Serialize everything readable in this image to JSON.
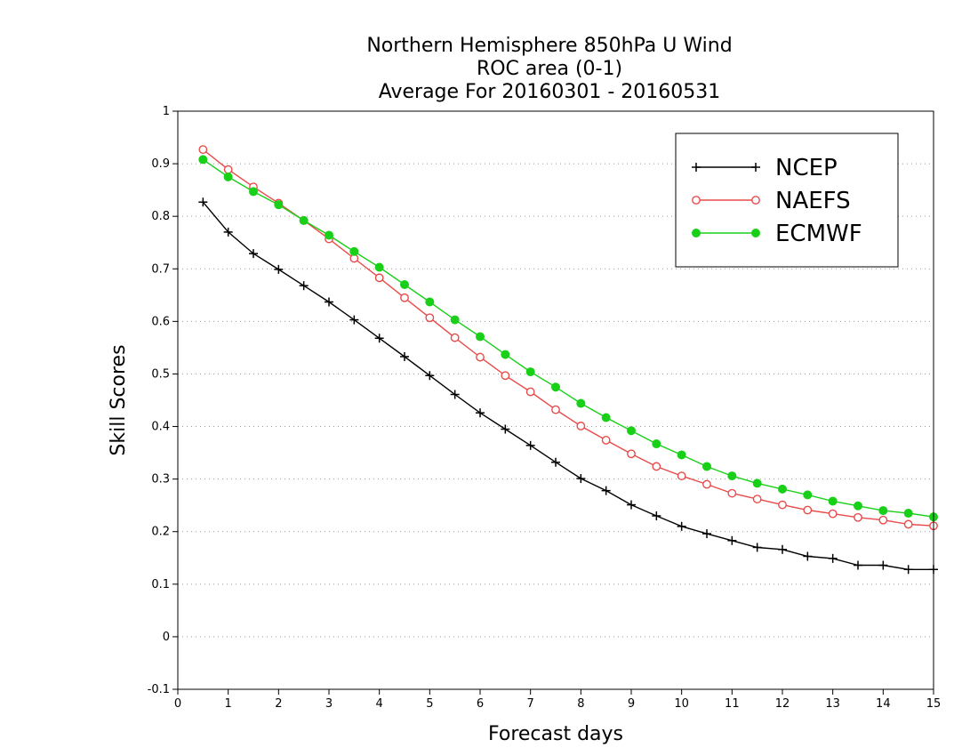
{
  "chart_data": {
    "type": "line",
    "title": [
      "Northern Hemisphere 850hPa U Wind",
      "ROC area (0-1)",
      "Average For 20160301 - 20160531"
    ],
    "xlabel": "Forecast days",
    "ylabel": "Skill Scores",
    "xlim": [
      0,
      15
    ],
    "ylim": [
      -0.1,
      1
    ],
    "xticks": [
      0,
      1,
      2,
      3,
      4,
      5,
      6,
      7,
      8,
      9,
      10,
      11,
      12,
      13,
      14,
      15
    ],
    "yticks": [
      -0.1,
      0,
      0.1,
      0.2,
      0.3,
      0.4,
      0.5,
      0.6,
      0.7,
      0.8,
      0.9,
      1
    ],
    "ytick_labels": [
      "-0.1",
      "0",
      "0.1",
      "0.2",
      "0.3",
      "0.4",
      "0.5",
      "0.6",
      "0.7",
      "0.8",
      "0.9",
      "1"
    ],
    "grid": "horizontal dotted",
    "legend_position": "top-right",
    "x": [
      0.5,
      1,
      1.5,
      2,
      2.5,
      3,
      3.5,
      4,
      4.5,
      5,
      5.5,
      6,
      6.5,
      7,
      7.5,
      8,
      8.5,
      9,
      9.5,
      10,
      10.5,
      11,
      11.5,
      12,
      12.5,
      13,
      13.5,
      14,
      14.5,
      15
    ],
    "series": [
      {
        "name": "NCEP",
        "color": "#000000",
        "marker": "plus",
        "values": [
          0.827,
          0.77,
          0.729,
          0.699,
          0.668,
          0.637,
          0.603,
          0.568,
          0.533,
          0.497,
          0.461,
          0.426,
          0.395,
          0.364,
          0.332,
          0.301,
          0.278,
          0.251,
          0.23,
          0.21,
          0.196,
          0.183,
          0.17,
          0.166,
          0.153,
          0.149,
          0.136,
          0.136,
          0.128,
          0.128
        ]
      },
      {
        "name": "NAEFS",
        "color": "#e84a4a",
        "marker": "open-circle",
        "values": [
          0.927,
          0.889,
          0.856,
          0.825,
          0.792,
          0.757,
          0.72,
          0.683,
          0.645,
          0.607,
          0.569,
          0.532,
          0.497,
          0.466,
          0.432,
          0.401,
          0.374,
          0.348,
          0.324,
          0.306,
          0.29,
          0.273,
          0.262,
          0.251,
          0.241,
          0.234,
          0.227,
          0.222,
          0.214,
          0.211
        ]
      },
      {
        "name": "ECMWF",
        "color": "#19d019",
        "marker": "filled-circle",
        "values": [
          0.908,
          0.875,
          0.847,
          0.822,
          0.792,
          0.764,
          0.733,
          0.703,
          0.67,
          0.637,
          0.603,
          0.571,
          0.537,
          0.504,
          0.475,
          0.444,
          0.417,
          0.392,
          0.367,
          0.346,
          0.324,
          0.306,
          0.292,
          0.281,
          0.27,
          0.258,
          0.249,
          0.24,
          0.235,
          0.228
        ]
      }
    ]
  }
}
